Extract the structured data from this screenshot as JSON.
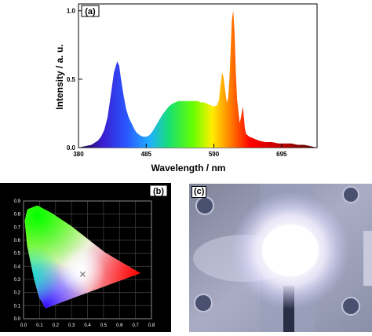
{
  "panel_a": {
    "label": "(a)",
    "chart_data": {
      "type": "area",
      "title": "",
      "xlabel": "Wavelength / nm",
      "ylabel": "Intensity / a. u.",
      "xlim": [
        380,
        750
      ],
      "ylim": [
        0,
        1.05
      ],
      "xticks": [
        "380",
        "485",
        "590",
        "695"
      ],
      "yticks": [
        "0.0",
        "0.5",
        "1.0"
      ],
      "grid": false,
      "fill": "spectral colour gradient (violet to deep red)",
      "series": [
        {
          "x": [
            380,
            390,
            400,
            410,
            415,
            420,
            425,
            430,
            435,
            440,
            443,
            446,
            450,
            454,
            458,
            462,
            466,
            470,
            475,
            480,
            485,
            490,
            495,
            500,
            505,
            510,
            515,
            520,
            525,
            530,
            535,
            540,
            545,
            550,
            555,
            560,
            565,
            570,
            575,
            580,
            585,
            590,
            595,
            598,
            600,
            603,
            605,
            608,
            610,
            612,
            614,
            616,
            618,
            620,
            622,
            624,
            626,
            628,
            630,
            632,
            635,
            638,
            640,
            645,
            650,
            655,
            660,
            670,
            680,
            690,
            700,
            710,
            720,
            730,
            740,
            750
          ],
          "y": [
            0.0,
            0.01,
            0.02,
            0.05,
            0.08,
            0.13,
            0.22,
            0.38,
            0.55,
            0.63,
            0.6,
            0.5,
            0.38,
            0.28,
            0.22,
            0.18,
            0.14,
            0.11,
            0.09,
            0.08,
            0.08,
            0.09,
            0.12,
            0.16,
            0.2,
            0.24,
            0.27,
            0.3,
            0.32,
            0.33,
            0.34,
            0.34,
            0.34,
            0.34,
            0.34,
            0.34,
            0.34,
            0.33,
            0.33,
            0.32,
            0.31,
            0.3,
            0.31,
            0.35,
            0.45,
            0.55,
            0.51,
            0.4,
            0.33,
            0.36,
            0.5,
            0.72,
            0.94,
            1.0,
            0.85,
            0.55,
            0.35,
            0.26,
            0.18,
            0.22,
            0.3,
            0.14,
            0.1,
            0.08,
            0.07,
            0.06,
            0.05,
            0.04,
            0.04,
            0.03,
            0.03,
            0.03,
            0.02,
            0.02,
            0.01,
            0.0
          ]
        }
      ]
    }
  },
  "panel_b": {
    "label": "(b)",
    "chart_data": {
      "type": "scatter",
      "title": "",
      "xlim": [
        0.0,
        0.8
      ],
      "ylim": [
        0.0,
        0.9
      ],
      "xticks": [
        "0.0",
        "0.1",
        "0.2",
        "0.3",
        "0.4",
        "0.5",
        "0.6",
        "0.7",
        "0.8"
      ],
      "yticks": [
        "0.0",
        "0.1",
        "0.2",
        "0.3",
        "0.4",
        "0.5",
        "0.6",
        "0.7",
        "0.8",
        "0.9"
      ],
      "grid": true,
      "background": "#000000",
      "series": [
        {
          "x": [
            0.37
          ],
          "y": [
            0.34
          ],
          "marker": "x"
        }
      ]
    }
  },
  "panel_c": {
    "label": "(c)"
  }
}
